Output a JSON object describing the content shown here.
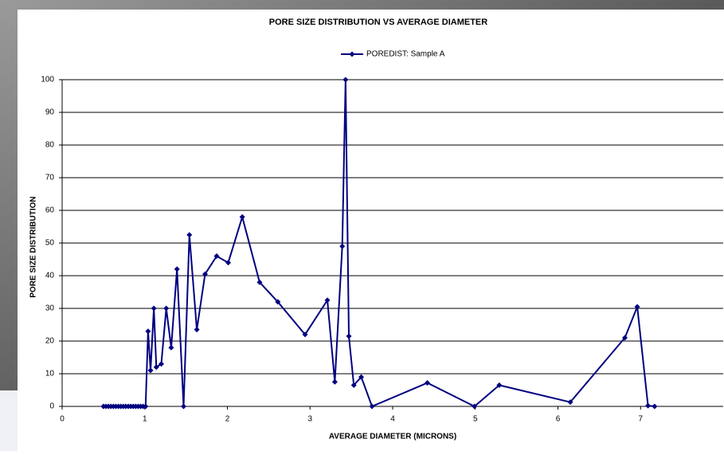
{
  "chart_data": {
    "type": "line",
    "title": "PORE SIZE DISTRIBUTION VS AVERAGE DIAMETER",
    "x_label": "AVERAGE DIAMETER (MICRONS)",
    "y_label": "PORE SIZE DISTRIBUTION",
    "x": [
      0.5,
      0.53,
      0.56,
      0.59,
      0.62,
      0.65,
      0.68,
      0.71,
      0.74,
      0.77,
      0.8,
      0.83,
      0.86,
      0.89,
      0.92,
      0.95,
      0.98,
      1.01,
      1.04,
      1.07,
      1.11,
      1.14,
      1.2,
      1.26,
      1.32,
      1.39,
      1.47,
      1.54,
      1.63,
      1.73,
      1.87,
      2.01,
      2.18,
      2.39,
      2.61,
      2.94,
      3.21,
      3.3,
      3.39,
      3.43,
      3.47,
      3.53,
      3.62,
      3.75,
      4.42,
      4.99,
      5.29,
      6.15,
      6.81,
      6.96,
      7.09,
      7.17
    ],
    "series": [
      {
        "name": "POREDIST: Sample A",
        "color": "#000080",
        "values": [
          0,
          0,
          0,
          0,
          0,
          0,
          0,
          0,
          0,
          0,
          0,
          0,
          0,
          0,
          0,
          0,
          0,
          0,
          23,
          11,
          30,
          12,
          13,
          30,
          18,
          42,
          0,
          52.5,
          23.5,
          40.5,
          46,
          44,
          58,
          38,
          32,
          22,
          32.5,
          7.5,
          49,
          100,
          21.5,
          6.5,
          9,
          0,
          7.2,
          0,
          6.5,
          1.3,
          21,
          30.5,
          0.2,
          0
        ]
      }
    ],
    "xlim": [
      0,
      8
    ],
    "xticks": [
      0,
      1,
      2,
      3,
      4,
      5,
      6,
      7
    ],
    "ylim": [
      0,
      100
    ],
    "yticks": [
      0,
      10,
      20,
      30,
      40,
      50,
      60,
      70,
      80,
      90,
      100
    ],
    "grid": true,
    "legend": "top"
  }
}
